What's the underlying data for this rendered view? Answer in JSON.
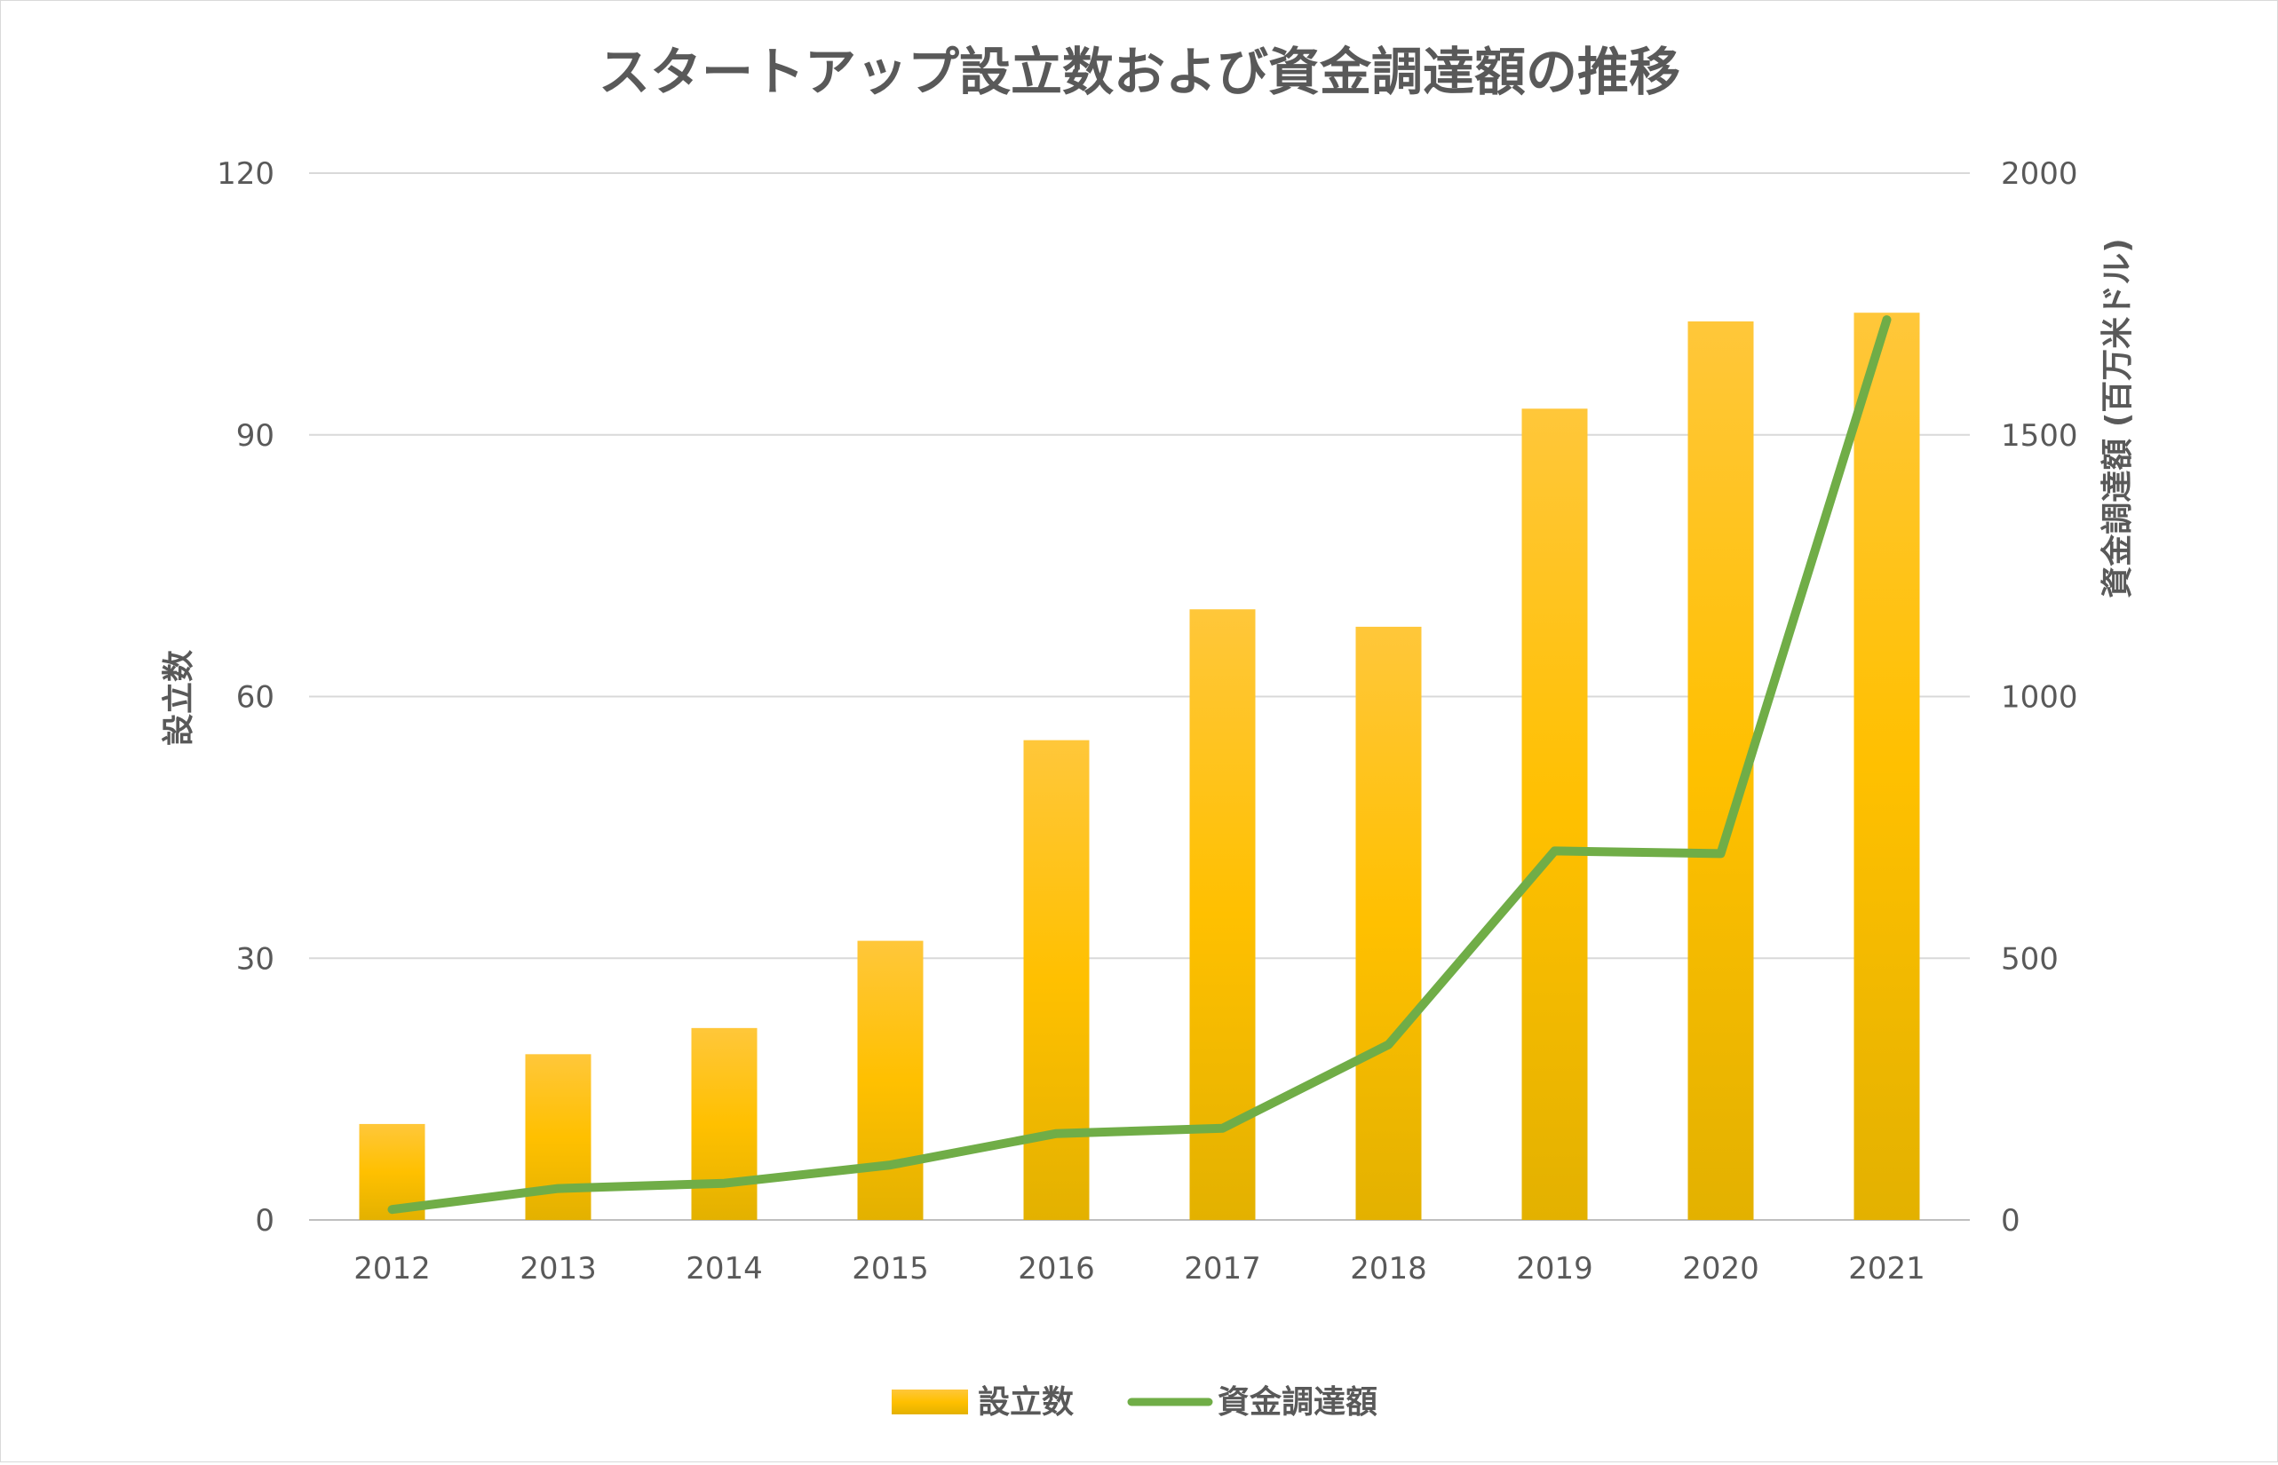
{
  "chart_data": {
    "type": "bar+line",
    "title": "スタートアップ設立数および資金調達額の推移",
    "categories": [
      "2012",
      "2013",
      "2014",
      "2015",
      "2016",
      "2017",
      "2018",
      "2019",
      "2020",
      "2021"
    ],
    "series": [
      {
        "name": "設立数",
        "type": "bar",
        "axis": "left",
        "color": "#FFC000",
        "values": [
          11,
          19,
          22,
          32,
          55,
          70,
          68,
          93,
          103,
          104
        ]
      },
      {
        "name": "資金調達額",
        "type": "line",
        "axis": "right",
        "color": "#70AD47",
        "values": [
          20,
          60,
          70,
          105,
          165,
          175,
          335,
          705,
          700,
          1720
        ]
      }
    ],
    "y_left": {
      "label": "設立数",
      "range": [
        0,
        120
      ],
      "ticks": [
        "0",
        "30",
        "60",
        "90",
        "120"
      ]
    },
    "y_right": {
      "label": "資金調達額 (百万米ドル)",
      "range": [
        0,
        2000
      ],
      "ticks": [
        "0",
        "500",
        "1000",
        "1500",
        "2000"
      ]
    },
    "grid": true,
    "legend_position": "bottom"
  }
}
